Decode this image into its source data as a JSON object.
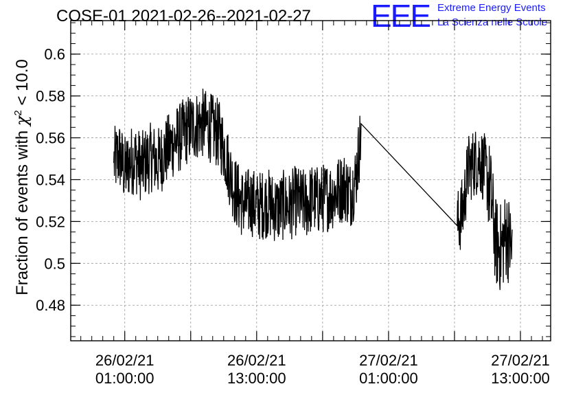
{
  "title": "COSE-01 2021-02-26--2021-02-27",
  "logo": {
    "mark": "EEE",
    "line1": "Extreme Energy Events",
    "line2": "La Scienza nelle Scuole",
    "color": "#1a1aff"
  },
  "chart_data": {
    "type": "line",
    "ylabel_prefix": "Fraction of events with ",
    "ylabel_chi": "χ",
    "ylabel_sup": "2",
    "ylabel_suffix": " < 10.0",
    "xlabel": "",
    "x_axis_type": "datetime",
    "xlim": [
      "2021-02-25T20:05",
      "2021-02-27T15:45"
    ],
    "ylim": [
      0.463,
      0.616
    ],
    "yticks": [
      0.48,
      0.5,
      0.52,
      0.54,
      0.56,
      0.58,
      0.6
    ],
    "ytick_labels": [
      "0.48",
      "0.5",
      "0.52",
      "0.54",
      "0.56",
      "0.58",
      "0.6"
    ],
    "xticks": [
      "2021-02-26T01:00",
      "2021-02-26T13:00",
      "2021-02-27T01:00",
      "2021-02-27T13:00"
    ],
    "xtick_labels": [
      {
        "date": "26/02/21",
        "time": "01:00:00"
      },
      {
        "date": "26/02/21",
        "time": "13:00:00"
      },
      {
        "date": "27/02/21",
        "time": "01:00:00"
      },
      {
        "date": "27/02/21",
        "time": "13:00:00"
      }
    ],
    "grid": true,
    "series": [
      {
        "color": "#000000",
        "points": [
          [
            "2021-02-26T00:00",
            0.548
          ],
          [
            "2021-02-26T00:30",
            0.552
          ],
          [
            "2021-02-26T01:00",
            0.544
          ],
          [
            "2021-02-26T01:30",
            0.549
          ],
          [
            "2021-02-26T02:00",
            0.55
          ],
          [
            "2021-02-26T02:30",
            0.546
          ],
          [
            "2021-02-26T03:00",
            0.549
          ],
          [
            "2021-02-26T03:30",
            0.551
          ],
          [
            "2021-02-26T04:00",
            0.548
          ],
          [
            "2021-02-26T04:30",
            0.552
          ],
          [
            "2021-02-26T05:00",
            0.555
          ],
          [
            "2021-02-26T05:30",
            0.558
          ],
          [
            "2021-02-26T06:00",
            0.56
          ],
          [
            "2021-02-26T06:30",
            0.563
          ],
          [
            "2021-02-26T07:00",
            0.565
          ],
          [
            "2021-02-26T07:30",
            0.566
          ],
          [
            "2021-02-26T08:00",
            0.567
          ],
          [
            "2021-02-26T08:30",
            0.566
          ],
          [
            "2021-02-26T09:00",
            0.564
          ],
          [
            "2021-02-26T09:30",
            0.562
          ],
          [
            "2021-02-26T10:00",
            0.556
          ],
          [
            "2021-02-26T10:30",
            0.545
          ],
          [
            "2021-02-26T11:00",
            0.535
          ],
          [
            "2021-02-26T11:30",
            0.53
          ],
          [
            "2021-02-26T12:00",
            0.528
          ],
          [
            "2021-02-26T12:30",
            0.53
          ],
          [
            "2021-02-26T13:00",
            0.527
          ],
          [
            "2021-02-26T13:30",
            0.528
          ],
          [
            "2021-02-26T14:00",
            0.529
          ],
          [
            "2021-02-26T14:30",
            0.527
          ],
          [
            "2021-02-26T15:00",
            0.526
          ],
          [
            "2021-02-26T15:30",
            0.528
          ],
          [
            "2021-02-26T16:00",
            0.527
          ],
          [
            "2021-02-26T16:30",
            0.53
          ],
          [
            "2021-02-26T17:00",
            0.529
          ],
          [
            "2021-02-26T17:30",
            0.528
          ],
          [
            "2021-02-26T18:00",
            0.531
          ],
          [
            "2021-02-26T18:30",
            0.53
          ],
          [
            "2021-02-26T19:00",
            0.531
          ],
          [
            "2021-02-26T19:30",
            0.532
          ],
          [
            "2021-02-26T20:00",
            0.533
          ],
          [
            "2021-02-26T20:30",
            0.535
          ],
          [
            "2021-02-26T21:00",
            0.537
          ],
          [
            "2021-02-26T21:30",
            0.533
          ],
          [
            "2021-02-26T22:00",
            0.54
          ],
          [
            "2021-02-26T22:30",
            0.562
          ],
          [
            "2021-02-27T07:15",
            0.518
          ],
          [
            "2021-02-27T07:45",
            0.525
          ],
          [
            "2021-02-27T08:15",
            0.545
          ],
          [
            "2021-02-27T08:45",
            0.548
          ],
          [
            "2021-02-27T09:15",
            0.55
          ],
          [
            "2021-02-27T09:45",
            0.545
          ],
          [
            "2021-02-27T10:15",
            0.535
          ],
          [
            "2021-02-27T10:45",
            0.51
          ],
          [
            "2021-02-27T11:15",
            0.507
          ],
          [
            "2021-02-27T11:45",
            0.515
          ],
          [
            "2021-02-27T12:15",
            0.505
          ]
        ]
      }
    ]
  }
}
